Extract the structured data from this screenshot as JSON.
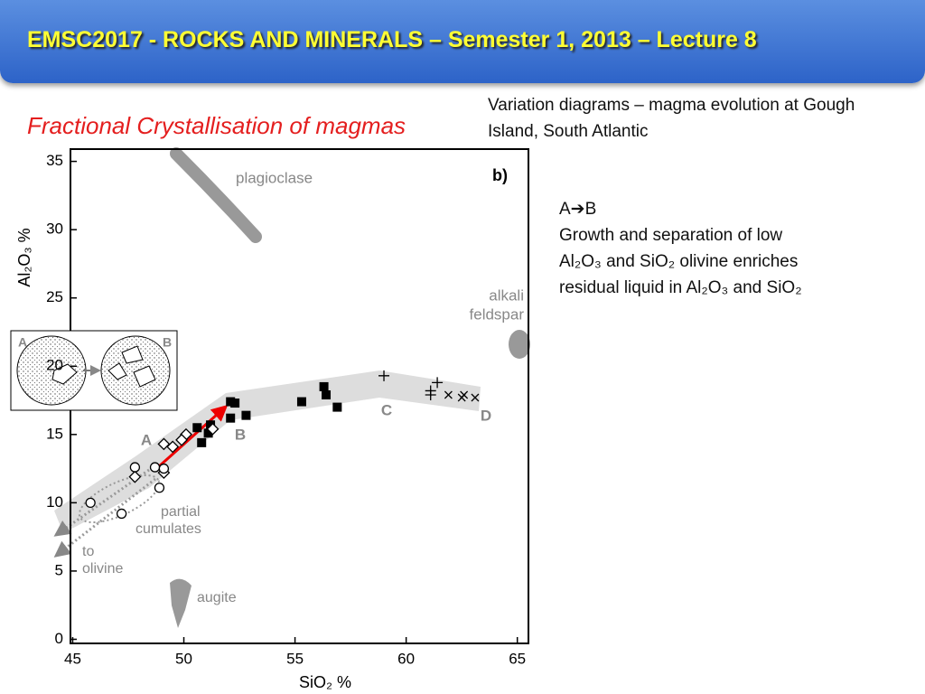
{
  "header": {
    "title": "EMSC2017 - ROCKS AND MINERALS – Semester 1, 2013 – Lecture 8"
  },
  "subtitle": "Fractional Crystallisation of magmas",
  "caption": "Variation diagrams – magma evolution at Gough Island, South Atlantic",
  "notes": {
    "heading": "A➔B",
    "text": "Growth and separation of low Al₂O₃ and SiO₂ olivine enriches residual liquid in Al₂O₃ and SiO₂"
  },
  "inset": {
    "labels": [
      "A",
      "B"
    ]
  },
  "chart_data": {
    "type": "scatter",
    "xlabel": "SiO₂ %",
    "ylabel": "Al₂O₃ %",
    "xlim": [
      44.9,
      65.5
    ],
    "ylim": [
      -0.3,
      35.9
    ],
    "xticks": [
      45,
      50,
      55,
      60,
      65
    ],
    "yticks": [
      0,
      5,
      10,
      15,
      20,
      25,
      30,
      35
    ],
    "annotations": [
      "plagioclase",
      "b)",
      "alkali",
      "feldspar",
      "A",
      "B",
      "C",
      "D",
      "partial",
      "cumulates",
      "to",
      "olivine",
      "augite"
    ],
    "series": [
      {
        "marker": "square",
        "color": "#000000",
        "x": [
          52.1,
          52.3,
          52.1,
          52.8,
          50.6,
          51.1,
          50.8,
          55.3,
          56.3,
          56.4,
          56.9,
          51.2
        ],
        "values": [
          17.4,
          17.3,
          16.2,
          16.4,
          15.5,
          15.1,
          14.4,
          17.4,
          18.5,
          17.9,
          17.0,
          15.7
        ]
      },
      {
        "marker": "diamond",
        "color": "#000000",
        "x": [
          49.1,
          49.5,
          50.1,
          51.3,
          47.8,
          49.1,
          49.9
        ],
        "values": [
          14.3,
          14.1,
          15.0,
          15.4,
          11.9,
          12.2,
          14.6
        ]
      },
      {
        "marker": "circle",
        "color": "#000000",
        "x": [
          45.8,
          47.8,
          48.7,
          49.1,
          48.9,
          47.2
        ],
        "values": [
          10.0,
          12.6,
          12.6,
          12.5,
          11.1,
          9.2
        ]
      },
      {
        "marker": "plus",
        "color": "#000000",
        "x": [
          59.0,
          61.4,
          61.1,
          61.1
        ],
        "values": [
          19.3,
          18.8,
          18.2,
          17.9
        ]
      },
      {
        "marker": "cross",
        "color": "#000000",
        "x": [
          61.9,
          62.5,
          62.6,
          63.1
        ],
        "values": [
          17.9,
          17.7,
          17.9,
          17.7
        ]
      }
    ]
  }
}
